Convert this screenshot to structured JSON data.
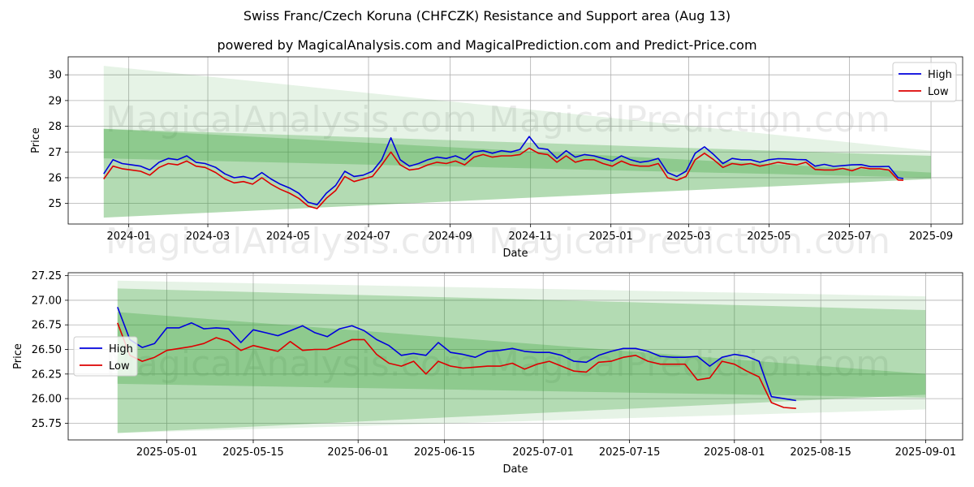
{
  "title": "Swiss Franc/Czech Koruna (CHFCZK) Resistance and Support area (Aug 13)",
  "subtitle": "powered by MagicalAnalysis.com and MagicalPrediction.com and Predict-Price.com",
  "watermarks": [
    "MagicalAnalysis.com",
    "MagicalPrediction.com"
  ],
  "colors": {
    "high": "#0000dd",
    "low": "#dd0000",
    "band": "#2e9d2e"
  },
  "chart_data": [
    {
      "type": "line",
      "xlabel": "Date",
      "ylabel": "Price",
      "xlim": [
        "2023-11-16",
        "2025-09-25"
      ],
      "ylim": [
        24.2,
        30.7
      ],
      "x_ticks": [
        "2024-01",
        "2024-03",
        "2024-05",
        "2024-07",
        "2024-09",
        "2024-11",
        "2025-01",
        "2025-03",
        "2025-05",
        "2025-07",
        "2025-09"
      ],
      "x_tick_dates": [
        "2024-01-01",
        "2024-03-01",
        "2024-05-01",
        "2024-07-01",
        "2024-09-01",
        "2024-11-01",
        "2025-01-01",
        "2025-03-01",
        "2025-05-01",
        "2025-07-01",
        "2025-09-01"
      ],
      "y_ticks": [
        25,
        26,
        27,
        28,
        29,
        30
      ],
      "legend": {
        "position": "top-right",
        "entries": [
          "High",
          "Low"
        ]
      },
      "grid": true,
      "bands": [
        {
          "start": "2023-12-13",
          "end": "2025-09-01",
          "top": [
            30.35,
            27.05
          ],
          "bottom": [
            24.45,
            25.95
          ],
          "opacity": 0.12
        },
        {
          "start": "2023-12-13",
          "end": "2025-09-01",
          "top": [
            27.9,
            26.85
          ],
          "bottom": [
            24.45,
            25.95
          ],
          "opacity": 0.28
        },
        {
          "start": "2023-12-13",
          "end": "2025-09-01",
          "top": [
            27.9,
            26.2
          ],
          "bottom": [
            26.75,
            26.0
          ],
          "opacity": 0.28
        }
      ],
      "series": [
        {
          "name": "High",
          "x": [
            "2023-12-13",
            "2023-12-20",
            "2023-12-27",
            "2024-01-03",
            "2024-01-10",
            "2024-01-17",
            "2024-01-24",
            "2024-01-31",
            "2024-02-07",
            "2024-02-14",
            "2024-02-21",
            "2024-02-28",
            "2024-03-07",
            "2024-03-14",
            "2024-03-21",
            "2024-03-28",
            "2024-04-04",
            "2024-04-11",
            "2024-04-18",
            "2024-04-25",
            "2024-05-02",
            "2024-05-09",
            "2024-05-16",
            "2024-05-23",
            "2024-05-30",
            "2024-06-06",
            "2024-06-13",
            "2024-06-20",
            "2024-06-27",
            "2024-07-04",
            "2024-07-11",
            "2024-07-18",
            "2024-07-25",
            "2024-08-01",
            "2024-08-08",
            "2024-08-15",
            "2024-08-22",
            "2024-08-29",
            "2024-09-05",
            "2024-09-12",
            "2024-09-19",
            "2024-09-26",
            "2024-10-03",
            "2024-10-10",
            "2024-10-17",
            "2024-10-24",
            "2024-10-31",
            "2024-11-07",
            "2024-11-14",
            "2024-11-21",
            "2024-11-28",
            "2024-12-05",
            "2024-12-12",
            "2024-12-19",
            "2024-12-26",
            "2025-01-02",
            "2025-01-09",
            "2025-01-16",
            "2025-01-23",
            "2025-01-30",
            "2025-02-06",
            "2025-02-13",
            "2025-02-20",
            "2025-02-27",
            "2025-03-06",
            "2025-03-13",
            "2025-03-20",
            "2025-03-27",
            "2025-04-03",
            "2025-04-10",
            "2025-04-17",
            "2025-04-24",
            "2025-05-01",
            "2025-05-08",
            "2025-05-15",
            "2025-05-22",
            "2025-05-29",
            "2025-06-05",
            "2025-06-12",
            "2025-06-19",
            "2025-06-26",
            "2025-07-03",
            "2025-07-10",
            "2025-07-17",
            "2025-07-24",
            "2025-07-31",
            "2025-08-07",
            "2025-08-11"
          ],
          "values": [
            26.15,
            26.7,
            26.55,
            26.5,
            26.45,
            26.3,
            26.6,
            26.75,
            26.7,
            26.85,
            26.6,
            26.55,
            26.4,
            26.15,
            26.0,
            26.05,
            25.95,
            26.2,
            25.95,
            25.75,
            25.6,
            25.4,
            25.05,
            24.95,
            25.4,
            25.7,
            26.25,
            26.05,
            26.1,
            26.25,
            26.7,
            27.55,
            26.7,
            26.45,
            26.55,
            26.7,
            26.8,
            26.75,
            26.85,
            26.7,
            27.0,
            27.05,
            26.95,
            27.05,
            27.0,
            27.1,
            27.6,
            27.15,
            27.1,
            26.75,
            27.05,
            26.8,
            26.9,
            26.85,
            26.75,
            26.65,
            26.85,
            26.7,
            26.6,
            26.65,
            26.75,
            26.2,
            26.05,
            26.25,
            26.95,
            27.2,
            26.9,
            26.55,
            26.75,
            26.7,
            26.7,
            26.6,
            26.7,
            26.74,
            26.73,
            26.71,
            26.7,
            26.45,
            26.52,
            26.44,
            26.47,
            26.5,
            26.51,
            26.43,
            26.43,
            26.44,
            26.0,
            25.97
          ]
        },
        {
          "name": "Low",
          "x": [
            "2023-12-13",
            "2023-12-20",
            "2023-12-27",
            "2024-01-03",
            "2024-01-10",
            "2024-01-17",
            "2024-01-24",
            "2024-01-31",
            "2024-02-07",
            "2024-02-14",
            "2024-02-21",
            "2024-02-28",
            "2024-03-07",
            "2024-03-14",
            "2024-03-21",
            "2024-03-28",
            "2024-04-04",
            "2024-04-11",
            "2024-04-18",
            "2024-04-25",
            "2024-05-02",
            "2024-05-09",
            "2024-05-16",
            "2024-05-23",
            "2024-05-30",
            "2024-06-06",
            "2024-06-13",
            "2024-06-20",
            "2024-06-27",
            "2024-07-04",
            "2024-07-11",
            "2024-07-18",
            "2024-07-25",
            "2024-08-01",
            "2024-08-08",
            "2024-08-15",
            "2024-08-22",
            "2024-08-29",
            "2024-09-05",
            "2024-09-12",
            "2024-09-19",
            "2024-09-26",
            "2024-10-03",
            "2024-10-10",
            "2024-10-17",
            "2024-10-24",
            "2024-10-31",
            "2024-11-07",
            "2024-11-14",
            "2024-11-21",
            "2024-11-28",
            "2024-12-05",
            "2024-12-12",
            "2024-12-19",
            "2024-12-26",
            "2025-01-02",
            "2025-01-09",
            "2025-01-16",
            "2025-01-23",
            "2025-01-30",
            "2025-02-06",
            "2025-02-13",
            "2025-02-20",
            "2025-02-27",
            "2025-03-06",
            "2025-03-13",
            "2025-03-20",
            "2025-03-27",
            "2025-04-03",
            "2025-04-10",
            "2025-04-17",
            "2025-04-24",
            "2025-05-01",
            "2025-05-08",
            "2025-05-15",
            "2025-05-22",
            "2025-05-29",
            "2025-06-05",
            "2025-06-12",
            "2025-06-19",
            "2025-06-26",
            "2025-07-03",
            "2025-07-10",
            "2025-07-17",
            "2025-07-24",
            "2025-07-31",
            "2025-08-07",
            "2025-08-11"
          ],
          "values": [
            25.95,
            26.45,
            26.35,
            26.3,
            26.25,
            26.1,
            26.4,
            26.55,
            26.5,
            26.65,
            26.45,
            26.4,
            26.2,
            25.95,
            25.8,
            25.85,
            25.75,
            26.0,
            25.75,
            25.55,
            25.4,
            25.2,
            24.9,
            24.8,
            25.2,
            25.5,
            26.05,
            25.85,
            25.95,
            26.05,
            26.5,
            27.0,
            26.5,
            26.3,
            26.35,
            26.5,
            26.6,
            26.55,
            26.65,
            26.5,
            26.8,
            26.9,
            26.8,
            26.85,
            26.85,
            26.9,
            27.15,
            26.95,
            26.9,
            26.6,
            26.85,
            26.6,
            26.7,
            26.7,
            26.55,
            26.45,
            26.65,
            26.5,
            26.45,
            26.45,
            26.55,
            26.0,
            25.9,
            26.05,
            26.7,
            26.95,
            26.7,
            26.4,
            26.55,
            26.5,
            26.55,
            26.45,
            26.52,
            26.6,
            26.54,
            26.5,
            26.6,
            26.32,
            26.3,
            26.3,
            26.36,
            26.27,
            26.4,
            26.35,
            26.35,
            26.3,
            25.91,
            25.9
          ]
        }
      ]
    },
    {
      "type": "line",
      "xlabel": "Date",
      "ylabel": "Price",
      "xlim": [
        "2025-04-15",
        "2025-09-07"
      ],
      "ylim": [
        25.58,
        27.28
      ],
      "x_ticks": [
        "2025-05-01",
        "2025-05-15",
        "2025-06-01",
        "2025-06-15",
        "2025-07-01",
        "2025-07-15",
        "2025-08-01",
        "2025-08-15",
        "2025-09-01"
      ],
      "y_ticks": [
        25.75,
        26.0,
        26.25,
        26.5,
        26.75,
        27.0,
        27.25
      ],
      "y_tick_labels": [
        "25.75",
        "26.00",
        "26.25",
        "26.50",
        "26.75",
        "27.00",
        "27.25"
      ],
      "legend": {
        "position": "center-left",
        "entries": [
          "High",
          "Low"
        ]
      },
      "grid": true,
      "bands": [
        {
          "start": "2025-04-23",
          "end": "2025-09-01",
          "top": [
            27.2,
            27.04
          ],
          "bottom": [
            25.65,
            25.89
          ],
          "opacity": 0.12
        },
        {
          "start": "2025-04-23",
          "end": "2025-09-01",
          "top": [
            27.12,
            26.9
          ],
          "bottom": [
            25.65,
            26.04
          ],
          "opacity": 0.28
        },
        {
          "start": "2025-04-23",
          "end": "2025-09-01",
          "top": [
            26.88,
            26.25
          ],
          "bottom": [
            26.15,
            26.01
          ],
          "opacity": 0.28
        }
      ],
      "series": [
        {
          "name": "High",
          "x": [
            "2025-04-23",
            "2025-04-25",
            "2025-04-27",
            "2025-04-29",
            "2025-05-01",
            "2025-05-03",
            "2025-05-05",
            "2025-05-07",
            "2025-05-09",
            "2025-05-11",
            "2025-05-13",
            "2025-05-15",
            "2025-05-17",
            "2025-05-19",
            "2025-05-21",
            "2025-05-23",
            "2025-05-25",
            "2025-05-27",
            "2025-05-29",
            "2025-05-31",
            "2025-06-02",
            "2025-06-04",
            "2025-06-06",
            "2025-06-08",
            "2025-06-10",
            "2025-06-12",
            "2025-06-14",
            "2025-06-16",
            "2025-06-18",
            "2025-06-20",
            "2025-06-22",
            "2025-06-24",
            "2025-06-26",
            "2025-06-28",
            "2025-06-30",
            "2025-07-02",
            "2025-07-04",
            "2025-07-06",
            "2025-07-08",
            "2025-07-10",
            "2025-07-12",
            "2025-07-14",
            "2025-07-16",
            "2025-07-18",
            "2025-07-20",
            "2025-07-22",
            "2025-07-24",
            "2025-07-26",
            "2025-07-28",
            "2025-07-30",
            "2025-08-01",
            "2025-08-03",
            "2025-08-05",
            "2025-08-07",
            "2025-08-09",
            "2025-08-11"
          ],
          "values": [
            26.93,
            26.6,
            26.52,
            26.56,
            26.72,
            26.72,
            26.77,
            26.71,
            26.72,
            26.71,
            26.57,
            26.7,
            26.67,
            26.64,
            26.69,
            26.74,
            26.67,
            26.63,
            26.71,
            26.74,
            26.69,
            26.6,
            26.54,
            26.44,
            26.46,
            26.44,
            26.57,
            26.47,
            26.45,
            26.42,
            26.48,
            26.49,
            26.51,
            26.48,
            26.47,
            26.47,
            26.44,
            26.38,
            26.37,
            26.44,
            26.48,
            26.51,
            26.51,
            26.48,
            26.43,
            26.42,
            26.42,
            26.43,
            26.33,
            26.42,
            26.45,
            26.43,
            26.38,
            26.02,
            26.0,
            25.98
          ]
        },
        {
          "name": "Low",
          "x": [
            "2025-04-23",
            "2025-04-25",
            "2025-04-27",
            "2025-04-29",
            "2025-05-01",
            "2025-05-03",
            "2025-05-05",
            "2025-05-07",
            "2025-05-09",
            "2025-05-11",
            "2025-05-13",
            "2025-05-15",
            "2025-05-17",
            "2025-05-19",
            "2025-05-21",
            "2025-05-23",
            "2025-05-25",
            "2025-05-27",
            "2025-05-29",
            "2025-05-31",
            "2025-06-02",
            "2025-06-04",
            "2025-06-06",
            "2025-06-08",
            "2025-06-10",
            "2025-06-12",
            "2025-06-14",
            "2025-06-16",
            "2025-06-18",
            "2025-06-20",
            "2025-06-22",
            "2025-06-24",
            "2025-06-26",
            "2025-06-28",
            "2025-06-30",
            "2025-07-02",
            "2025-07-04",
            "2025-07-06",
            "2025-07-08",
            "2025-07-10",
            "2025-07-12",
            "2025-07-14",
            "2025-07-16",
            "2025-07-18",
            "2025-07-20",
            "2025-07-22",
            "2025-07-24",
            "2025-07-26",
            "2025-07-28",
            "2025-07-30",
            "2025-08-01",
            "2025-08-03",
            "2025-08-05",
            "2025-08-07",
            "2025-08-09",
            "2025-08-11"
          ],
          "values": [
            26.77,
            26.44,
            26.38,
            26.42,
            26.49,
            26.51,
            26.53,
            26.56,
            26.62,
            26.58,
            26.49,
            26.54,
            26.51,
            26.48,
            26.58,
            26.49,
            26.5,
            26.5,
            26.55,
            26.6,
            26.6,
            26.45,
            26.36,
            26.33,
            26.38,
            26.25,
            26.38,
            26.33,
            26.31,
            26.32,
            26.33,
            26.33,
            26.36,
            26.3,
            26.35,
            26.38,
            26.33,
            26.28,
            26.27,
            26.37,
            26.38,
            26.42,
            26.44,
            26.38,
            26.35,
            26.35,
            26.35,
            26.19,
            26.21,
            26.38,
            26.35,
            26.28,
            26.22,
            25.96,
            25.91,
            25.9
          ]
        }
      ]
    }
  ]
}
